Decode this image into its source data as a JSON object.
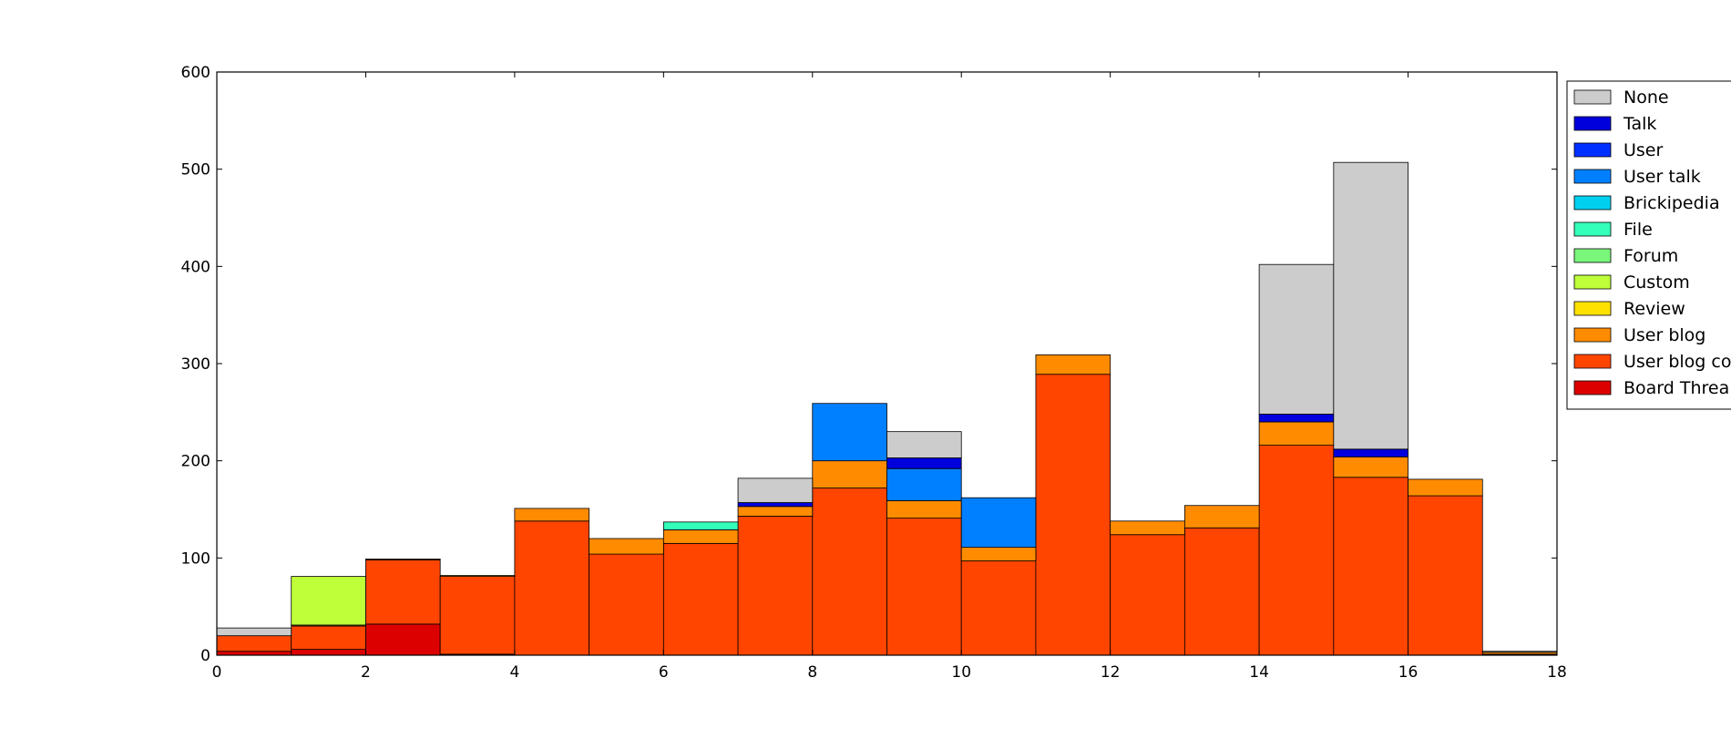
{
  "chart_data": {
    "type": "bar",
    "stacked": true,
    "title": "",
    "xlabel": "",
    "ylabel": "",
    "xlim": [
      0,
      18
    ],
    "ylim": [
      0,
      600
    ],
    "xticks": [
      0,
      2,
      4,
      6,
      8,
      10,
      12,
      14,
      16,
      18
    ],
    "yticks": [
      0,
      100,
      200,
      300,
      400,
      500,
      600
    ],
    "bin_starts": [
      0,
      1,
      2,
      3,
      4,
      5,
      6,
      7,
      8,
      9,
      10,
      11,
      12,
      13,
      14,
      15,
      16,
      17
    ],
    "bin_width": 1,
    "legend_position": "right, outside plot (cropped)",
    "series": [
      {
        "name": "Board Threa",
        "color": "#dd0000",
        "values": [
          4,
          6,
          32,
          1,
          0,
          0,
          0,
          0,
          0,
          0,
          0,
          0,
          0,
          0,
          0,
          0,
          0,
          1
        ]
      },
      {
        "name": "User blog co",
        "color": "#ff4500",
        "values": [
          16,
          24,
          66,
          80,
          138,
          104,
          115,
          143,
          172,
          141,
          97,
          289,
          124,
          131,
          216,
          183,
          164,
          0
        ]
      },
      {
        "name": "User blog",
        "color": "#ff8c00",
        "values": [
          0,
          1,
          1,
          1,
          13,
          16,
          14,
          10,
          28,
          18,
          14,
          20,
          14,
          23,
          24,
          21,
          17,
          2
        ]
      },
      {
        "name": "Review",
        "color": "#ffe100",
        "values": [
          0,
          0,
          0,
          0,
          0,
          0,
          0,
          0,
          0,
          0,
          0,
          0,
          0,
          0,
          0,
          0,
          0,
          0
        ]
      },
      {
        "name": "Custom",
        "color": "#bfff3a",
        "values": [
          0,
          50,
          0,
          0,
          0,
          0,
          0,
          0,
          0,
          0,
          0,
          0,
          0,
          0,
          0,
          0,
          0,
          0
        ]
      },
      {
        "name": "Forum",
        "color": "#7af77a",
        "values": [
          0,
          0,
          0,
          0,
          0,
          0,
          0,
          0,
          0,
          0,
          0,
          0,
          0,
          0,
          0,
          0,
          0,
          0
        ]
      },
      {
        "name": "File",
        "color": "#33ffbb",
        "values": [
          0,
          0,
          0,
          0,
          0,
          0,
          8,
          0,
          0,
          0,
          0,
          0,
          0,
          0,
          0,
          0,
          0,
          0
        ]
      },
      {
        "name": "Brickipedia",
        "color": "#00d0f0",
        "values": [
          0,
          0,
          0,
          0,
          0,
          0,
          0,
          0,
          0,
          0,
          0,
          0,
          0,
          0,
          0,
          0,
          0,
          0
        ]
      },
      {
        "name": "User talk",
        "color": "#0080ff",
        "values": [
          0,
          0,
          0,
          0,
          0,
          0,
          0,
          0,
          59,
          33,
          51,
          0,
          0,
          0,
          0,
          0,
          0,
          0
        ]
      },
      {
        "name": "User",
        "color": "#0030ff",
        "values": [
          0,
          0,
          0,
          0,
          0,
          0,
          0,
          0,
          0,
          0,
          0,
          0,
          0,
          0,
          0,
          0,
          0,
          0
        ]
      },
      {
        "name": "Talk",
        "color": "#0000dd",
        "values": [
          0,
          0,
          0,
          0,
          0,
          0,
          0,
          4,
          0,
          11,
          0,
          0,
          0,
          0,
          8,
          8,
          0,
          0
        ]
      },
      {
        "name": "None",
        "color": "#cccccc",
        "values": [
          8,
          0,
          0,
          0,
          0,
          0,
          0,
          25,
          0,
          27,
          0,
          0,
          0,
          0,
          154,
          295,
          0,
          1
        ]
      }
    ],
    "legend": [
      "None",
      "Talk",
      "User",
      "User talk",
      "Brickipedia",
      "File",
      "Forum",
      "Custom",
      "Review",
      "User blog",
      "User blog co",
      "Board Threa"
    ]
  }
}
